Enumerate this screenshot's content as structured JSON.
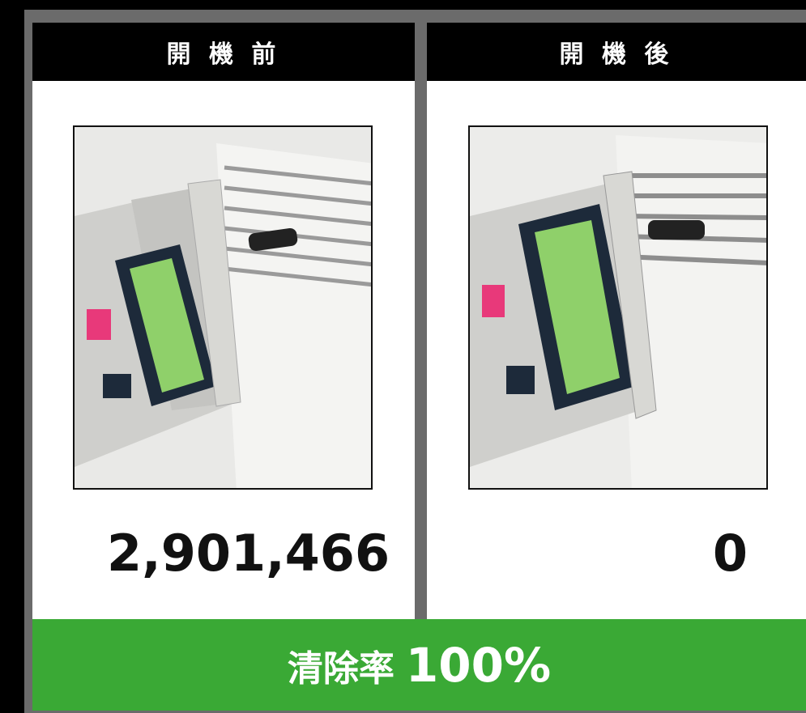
{
  "panels": [
    {
      "header": "開 機 前",
      "value": "2,901,466"
    },
    {
      "header": "開 機 後",
      "value": "0"
    }
  ],
  "footer": {
    "label": "清除率",
    "value": "100%"
  }
}
